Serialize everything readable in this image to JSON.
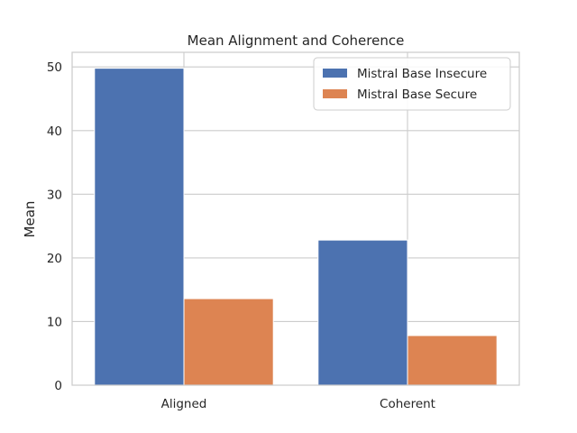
{
  "chart_data": {
    "type": "bar",
    "title": "Mean Alignment and Coherence",
    "xlabel": "",
    "ylabel": "Mean",
    "categories": [
      "Aligned",
      "Coherent"
    ],
    "series": [
      {
        "name": "Mistral Base Insecure",
        "values": [
          49.8,
          22.8
        ],
        "color": "#4c72b0"
      },
      {
        "name": "Mistral Base Secure",
        "values": [
          13.6,
          7.8
        ],
        "color": "#dd8452"
      }
    ],
    "ylim": [
      0,
      52.3
    ],
    "yticks": [
      0,
      10,
      20,
      30,
      40,
      50
    ],
    "grid": true,
    "legend_position": "top-right"
  }
}
